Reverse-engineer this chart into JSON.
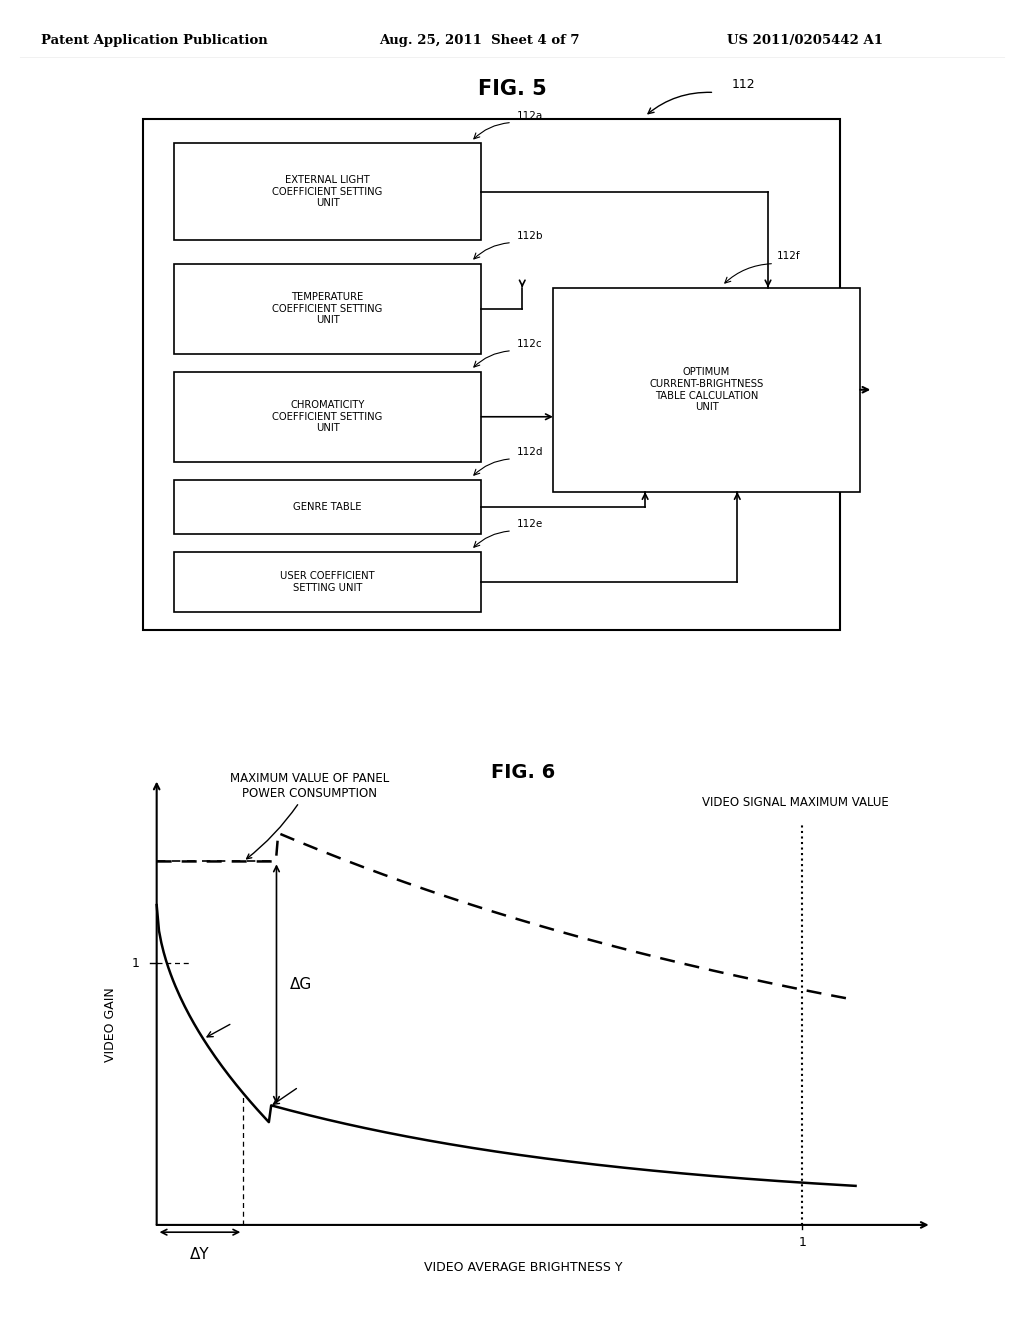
{
  "header_left": "Patent Application Publication",
  "header_mid": "Aug. 25, 2011  Sheet 4 of 7",
  "header_right": "US 2011/0205442 A1",
  "fig5_title": "FIG. 5",
  "fig6_title": "FIG. 6",
  "outer_label": "112",
  "fig6_ylabel": "VIDEO GAIN",
  "fig6_xlabel": "VIDEO AVERAGE BRIGHTNESS Y",
  "fig6_annotation_top": "VIDEO SIGNAL MAXIMUM VALUE",
  "fig6_annotation_panel": "MAXIMUM VALUE OF PANEL\nPOWER CONSUMPTION",
  "fig6_delta_g": "ΔG",
  "fig6_delta_y": "ΔY",
  "background": "#ffffff"
}
